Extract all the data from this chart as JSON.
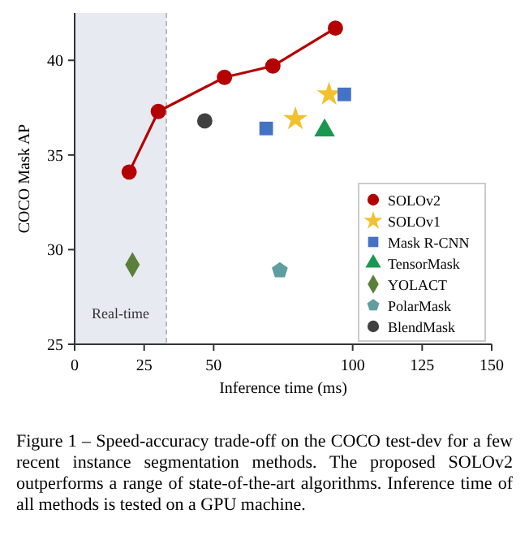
{
  "chart_data": {
    "type": "scatter",
    "xlabel": "Inference time (ms)",
    "ylabel": "COCO Mask AP",
    "xlim": [
      0,
      150
    ],
    "xticks": [
      0,
      25,
      50,
      100,
      125,
      150
    ],
    "ref_lines": [
      {
        "axis": "x",
        "value": 33,
        "color": "#aaaabb",
        "line_style": "dashed"
      }
    ],
    "ylim": [
      25,
      42.5
    ],
    "yticks": [
      25,
      30,
      35,
      40
    ],
    "legend": "bottom right",
    "grid": false,
    "bands": [
      {
        "axis": "x",
        "from": 0,
        "to": 33,
        "label": "Real-time",
        "color": "#e8eaf2"
      }
    ],
    "series": [
      {
        "name": "SOLOv2",
        "type": "line",
        "marker": "circle",
        "color": "#b40000",
        "x": [
          19.6,
          30.1,
          53.9,
          71.3,
          93.8
        ],
        "values": [
          34.1,
          37.3,
          39.1,
          39.7,
          41.7
        ]
      },
      {
        "name": "SOLOv1",
        "marker": "star",
        "color": "#f2c12e",
        "x": [
          79.4,
          91.5
        ],
        "values": [
          36.9,
          38.2
        ]
      },
      {
        "name": "Mask R-CNN",
        "marker": "square",
        "color": "#4472c4",
        "x": [
          68.9,
          97
        ],
        "values": [
          36.4,
          38.2
        ]
      },
      {
        "name": "TensorMask",
        "marker": "triangle",
        "color": "#1a9850",
        "x": [
          89.9
        ],
        "values": [
          36.3
        ]
      },
      {
        "name": "YOLACT",
        "marker": "diamond",
        "color": "#5a7f3c",
        "x": [
          20.8
        ],
        "values": [
          29.2
        ]
      },
      {
        "name": "PolarMask",
        "color": "#5f9ea0",
        "x": [
          73.8
        ],
        "values": [
          28.9
        ]
      },
      {
        "name": "BlendMask",
        "marker": "circle",
        "color": "#404040",
        "x": [
          46.8
        ],
        "values": [
          36.8
        ]
      }
    ],
    "annotations": [
      "Figure 1 – Speed-accuracy trade-off on the COCO test-dev for a few recent instance segmentation methods. The proposed SOLOv2 outperforms a range of state-of-the-art algorithms. Inference time of all methods is tested on a GPU machine."
    ]
  }
}
